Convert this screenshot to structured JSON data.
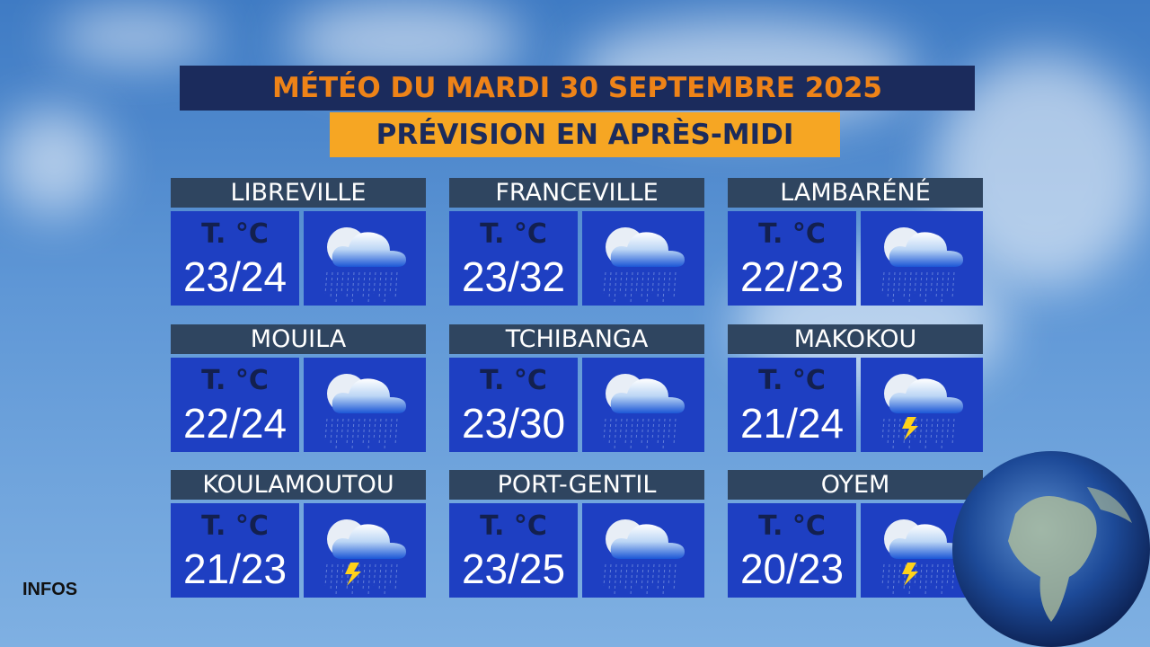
{
  "header": {
    "title": "MÉTÉO DU MARDI 30 SEPTEMBRE 2025",
    "subtitle": "PRÉVISION EN APRÈS-MIDI"
  },
  "cities": [
    {
      "name": "LIBREVILLE",
      "unit": "T. °C",
      "temps": "23/24",
      "thunder": false
    },
    {
      "name": "FRANCEVILLE",
      "unit": "T. °C",
      "temps": "23/32",
      "thunder": false
    },
    {
      "name": "LAMBARÉNÉ",
      "unit": "T. °C",
      "temps": "22/23",
      "thunder": false
    },
    {
      "name": "MOUILA",
      "unit": "T. °C",
      "temps": "22/24",
      "thunder": false
    },
    {
      "name": "TCHIBANGA",
      "unit": "T. °C",
      "temps": "23/30",
      "thunder": false
    },
    {
      "name": "MAKOKOU",
      "unit": "T. °C",
      "temps": "21/24",
      "thunder": true
    },
    {
      "name": "KOULAMOUTOU",
      "unit": "T. °C",
      "temps": "21/23",
      "thunder": true
    },
    {
      "name": "PORT-GENTIL",
      "unit": "T. °C",
      "temps": "23/25",
      "thunder": false
    },
    {
      "name": "OYEM",
      "unit": "T. °C",
      "temps": "20/23",
      "thunder": true
    }
  ],
  "footer": {
    "label": "INFOS"
  }
}
